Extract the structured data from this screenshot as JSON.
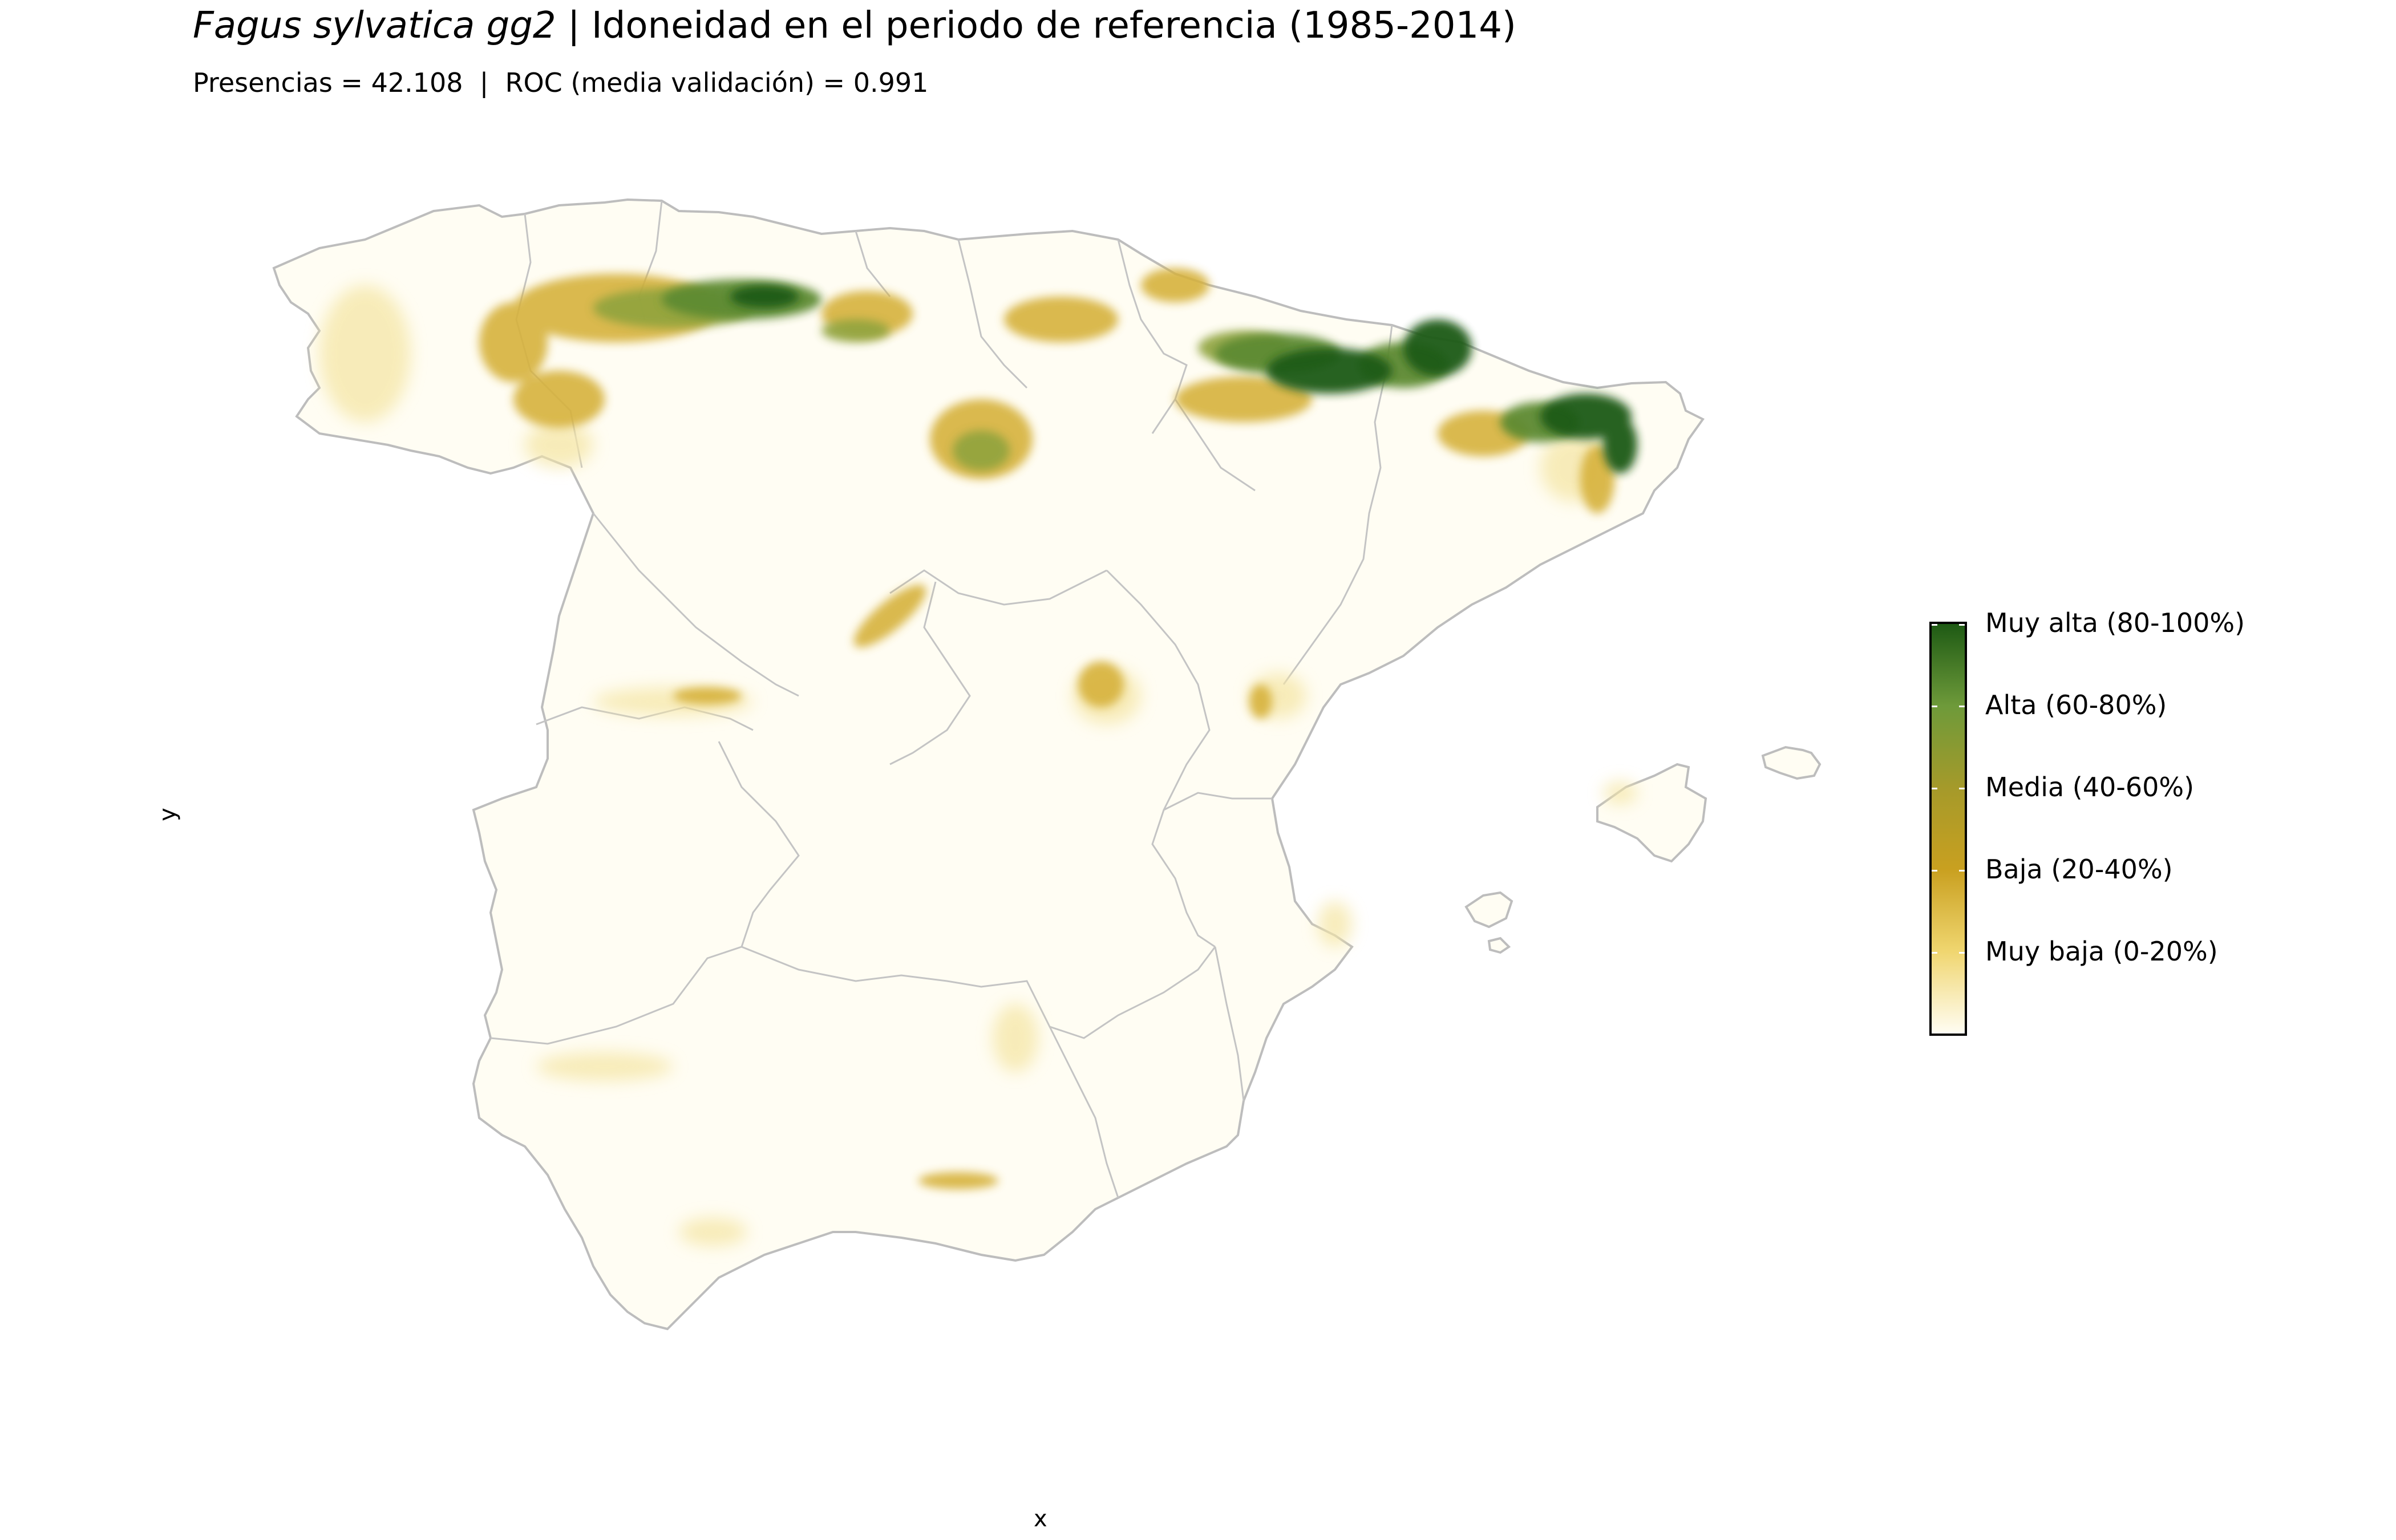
{
  "title": {
    "species": "Fagus sylvatica gg2",
    "separator": " | ",
    "text": "Idoneidad en el periodo de referencia (1985-2014)"
  },
  "subtitle": "Presencias = 42.108  |  ROC (media validación) = 0.991",
  "axes": {
    "x": "x",
    "y": "y"
  },
  "legend": {
    "labels": [
      "Muy alta (80-100%)",
      "Alta (60-80%)",
      "Media (40-60%)",
      "Baja (20-40%)",
      "Muy baja (0-20%)"
    ],
    "colors": [
      "#1e5a14",
      "#6e9a3a",
      "#a59a2a",
      "#c9a020",
      "#f0d670",
      "#fffdf3"
    ]
  },
  "colors": {
    "background_suitability": "#fffdf3",
    "boundary": "#bdbdbd"
  }
}
